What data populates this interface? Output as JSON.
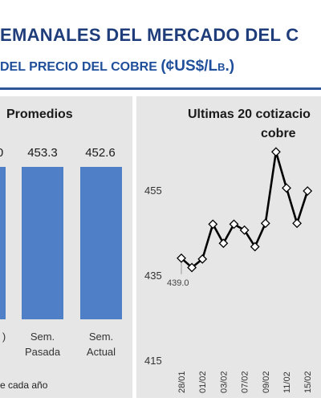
{
  "header": {
    "title": "EMANALES DEL MERCADO DEL C",
    "subtitle": "DEL PRECIO DEL COBRE",
    "subtitle_unit": "(¢US$/Lb.)"
  },
  "left_panel": {
    "title": "Promedios",
    "cut_value": "0",
    "footnote": "e cada año"
  },
  "right_panel": {
    "title_line1": "Ultimas 20 cotizacio",
    "title_line2": "cobre",
    "annotation": "439.0"
  },
  "colors": {
    "bar": "#4f7fc6",
    "panel": "#e6e6e6",
    "title": "#1f3d7a",
    "line": "#000000"
  },
  "chart_data": [
    {
      "type": "bar",
      "title": "Promedios",
      "categories": [
        ")",
        "Sem.\nPasada",
        "Sem.\nActual"
      ],
      "values": [
        null,
        453.3,
        452.6
      ],
      "labels": [
        "0",
        "453.3",
        "452.6"
      ]
    },
    {
      "type": "line",
      "title": "Ultimas 20 cotizacio cobre",
      "y_ticks": [
        415,
        435,
        455
      ],
      "ylim": [
        415,
        460
      ],
      "x_tick_labels": [
        "28/01",
        "01/02",
        "03/02",
        "07/02",
        "09/02",
        "11/02",
        "15/02"
      ],
      "values": [
        439.0,
        436.8,
        438.8,
        447.0,
        442.5,
        447.0,
        445.6,
        441.7,
        447.2,
        464.0,
        455.5,
        447.2,
        454.8
      ],
      "annotations": [
        {
          "index": 0,
          "text": "439.0"
        }
      ]
    }
  ]
}
